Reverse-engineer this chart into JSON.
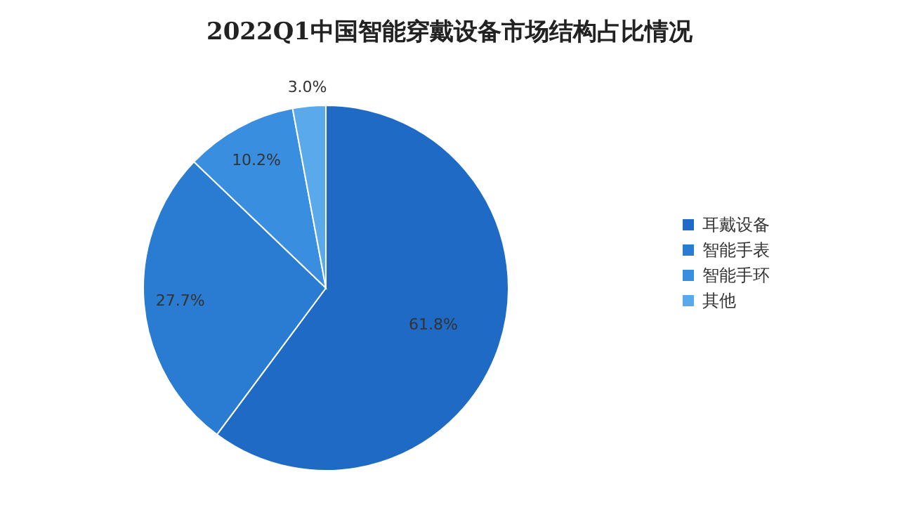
{
  "chart_data": {
    "type": "pie",
    "title": "2022Q1中国智能穿戴设备市场结构占比情况",
    "categories": [
      "耳戴设备",
      "智能手表",
      "智能手环",
      "其他"
    ],
    "values": [
      61.8,
      27.7,
      10.2,
      3.0
    ],
    "value_labels": [
      "61.8%",
      "27.7%",
      "10.2%",
      "3.0%"
    ],
    "colors": [
      "#1f6ac4",
      "#2a7bd2",
      "#3a8ee0",
      "#5aa9ea"
    ],
    "legend": "right"
  }
}
